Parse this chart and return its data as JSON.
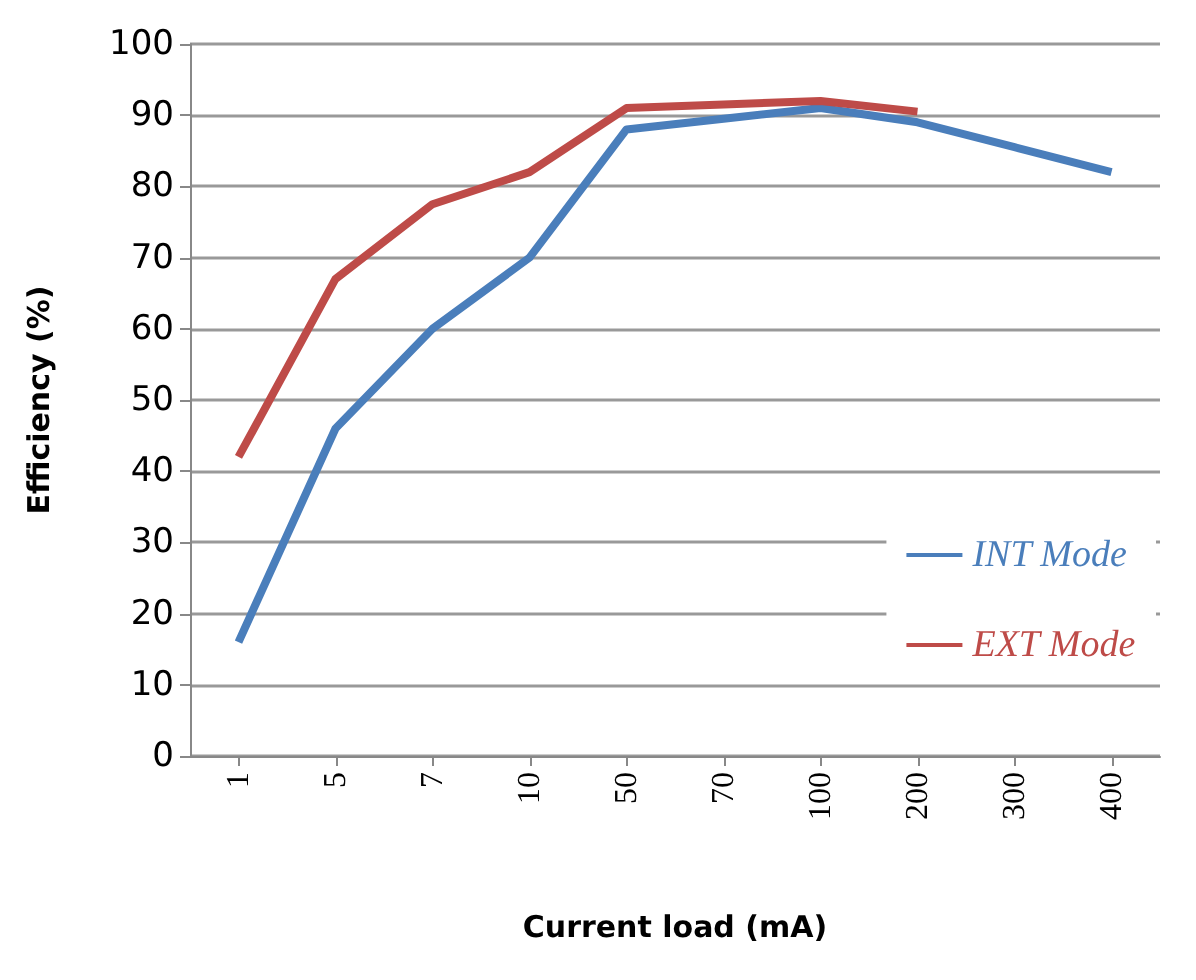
{
  "chart_data": {
    "type": "line",
    "xlabel": "Current load (mA)",
    "ylabel": "Efficiency (%)",
    "categories": [
      "1",
      "5",
      "7",
      "10",
      "50",
      "70",
      "100",
      "200",
      "300",
      "400"
    ],
    "series": [
      {
        "name": "INT Mode",
        "color": "#4a7ebb",
        "values": [
          16,
          46,
          60,
          70,
          88,
          89.5,
          91,
          89,
          85.5,
          82
        ]
      },
      {
        "name": "EXT Mode",
        "color": "#be4b48",
        "values": [
          42,
          67,
          77.5,
          82,
          91,
          91.5,
          92,
          90.5,
          null,
          null
        ]
      }
    ],
    "ylim": [
      0,
      100
    ],
    "yticks": [
      0,
      10,
      20,
      30,
      40,
      50,
      60,
      70,
      80,
      90,
      100
    ],
    "grid": "y",
    "legend": "bottom right",
    "marker": "none"
  }
}
